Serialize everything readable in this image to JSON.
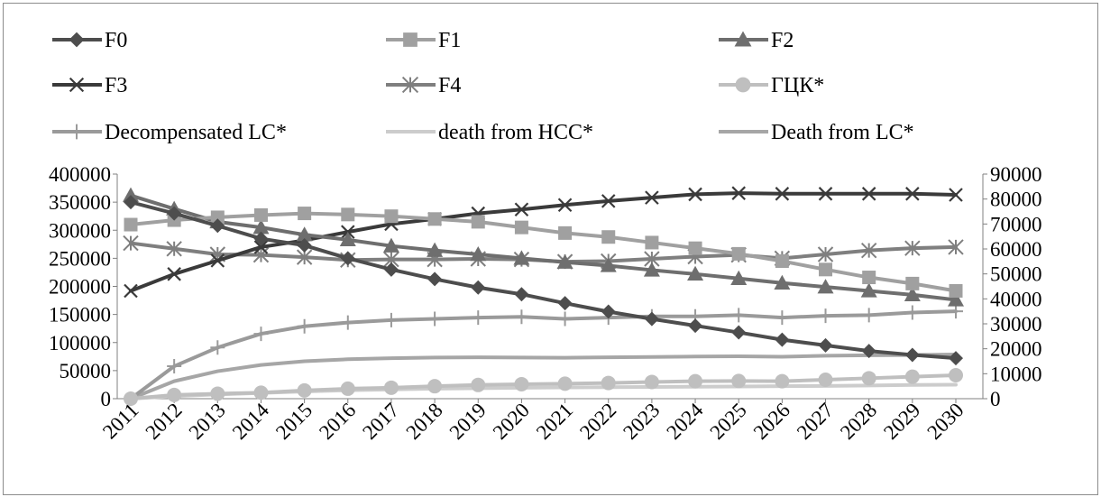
{
  "chart_data": {
    "type": "line",
    "categories": [
      "2011",
      "2012",
      "2013",
      "2014",
      "2015",
      "2016",
      "2017",
      "2018",
      "2019",
      "2020",
      "2021",
      "2022",
      "2023",
      "2024",
      "2025",
      "2026",
      "2027",
      "2028",
      "2029",
      "2030"
    ],
    "y_left": {
      "min": 0,
      "max": 400000,
      "ticks": [
        0,
        50000,
        100000,
        150000,
        200000,
        250000,
        300000,
        350000,
        400000
      ]
    },
    "y_right": {
      "min": 0,
      "max": 90000,
      "ticks": [
        0,
        10000,
        20000,
        30000,
        40000,
        50000,
        60000,
        70000,
        80000,
        90000
      ]
    },
    "grid": false,
    "legend_position": "top",
    "series": [
      {
        "name": "F0",
        "axis": "left",
        "marker": "diamond",
        "color": "#4d4d4d",
        "values": [
          350000,
          330000,
          308000,
          285000,
          273000,
          250000,
          230000,
          213000,
          198000,
          186000,
          170000,
          155000,
          142000,
          130000,
          118000,
          105000,
          95000,
          85000,
          78000,
          72000
        ]
      },
      {
        "name": "F1",
        "axis": "left",
        "marker": "square",
        "color": "#a0a0a0",
        "values": [
          310000,
          318000,
          323000,
          327000,
          330000,
          328000,
          325000,
          320000,
          315000,
          305000,
          295000,
          288000,
          278000,
          268000,
          258000,
          245000,
          230000,
          216000,
          205000,
          192000
        ]
      },
      {
        "name": "F2",
        "axis": "left",
        "marker": "triangle",
        "color": "#6e6e6e",
        "values": [
          362000,
          338000,
          315000,
          305000,
          292000,
          283000,
          272000,
          264000,
          257000,
          250000,
          243000,
          237000,
          229000,
          222000,
          214000,
          206000,
          199000,
          192000,
          185000,
          176000
        ]
      },
      {
        "name": "F3",
        "axis": "left",
        "marker": "x",
        "color": "#3a3a3a",
        "values": [
          192000,
          222000,
          246000,
          270000,
          282000,
          297000,
          311000,
          320000,
          330000,
          337000,
          345000,
          352000,
          358000,
          364000,
          366000,
          365000,
          365000,
          365000,
          365000,
          363000
        ]
      },
      {
        "name": "F4",
        "axis": "left",
        "marker": "star",
        "color": "#7f7f7f",
        "values": [
          277000,
          267000,
          257000,
          256000,
          252000,
          247000,
          248000,
          248000,
          249000,
          248000,
          244000,
          245000,
          249000,
          253000,
          256000,
          250000,
          257000,
          264000,
          268000,
          270000
        ]
      },
      {
        "name": "ГЦК*",
        "axis": "right",
        "marker": "circle",
        "color": "#bfbfbf",
        "values": [
          0,
          1500,
          2000,
          2400,
          3300,
          4000,
          4400,
          5000,
          5500,
          5800,
          6000,
          6300,
          6700,
          7000,
          7100,
          7000,
          7600,
          8200,
          8800,
          9400
        ]
      },
      {
        "name": "Decompensated LC*",
        "axis": "right",
        "marker": "plus",
        "color": "#9a9a9a",
        "values": [
          0,
          13000,
          20500,
          26000,
          29000,
          30500,
          31500,
          32000,
          32500,
          32800,
          32000,
          32500,
          33000,
          33000,
          33500,
          32500,
          33200,
          33500,
          34500,
          35000
        ]
      },
      {
        "name": "death from HCC*",
        "axis": "right",
        "marker": "none",
        "color": "#cccccc",
        "values": [
          0,
          1000,
          1700,
          2300,
          2900,
          3400,
          3700,
          4000,
          4200,
          4400,
          4500,
          4600,
          4700,
          4800,
          4900,
          5000,
          5100,
          5300,
          5500,
          5600
        ]
      },
      {
        "name": "Death from LC*",
        "axis": "right",
        "marker": "none",
        "color": "#a6a6a6",
        "values": [
          0,
          7000,
          11000,
          13500,
          15000,
          15800,
          16200,
          16500,
          16600,
          16500,
          16400,
          16600,
          16700,
          16900,
          17000,
          16800,
          17200,
          17400,
          17500,
          17700
        ]
      }
    ]
  }
}
